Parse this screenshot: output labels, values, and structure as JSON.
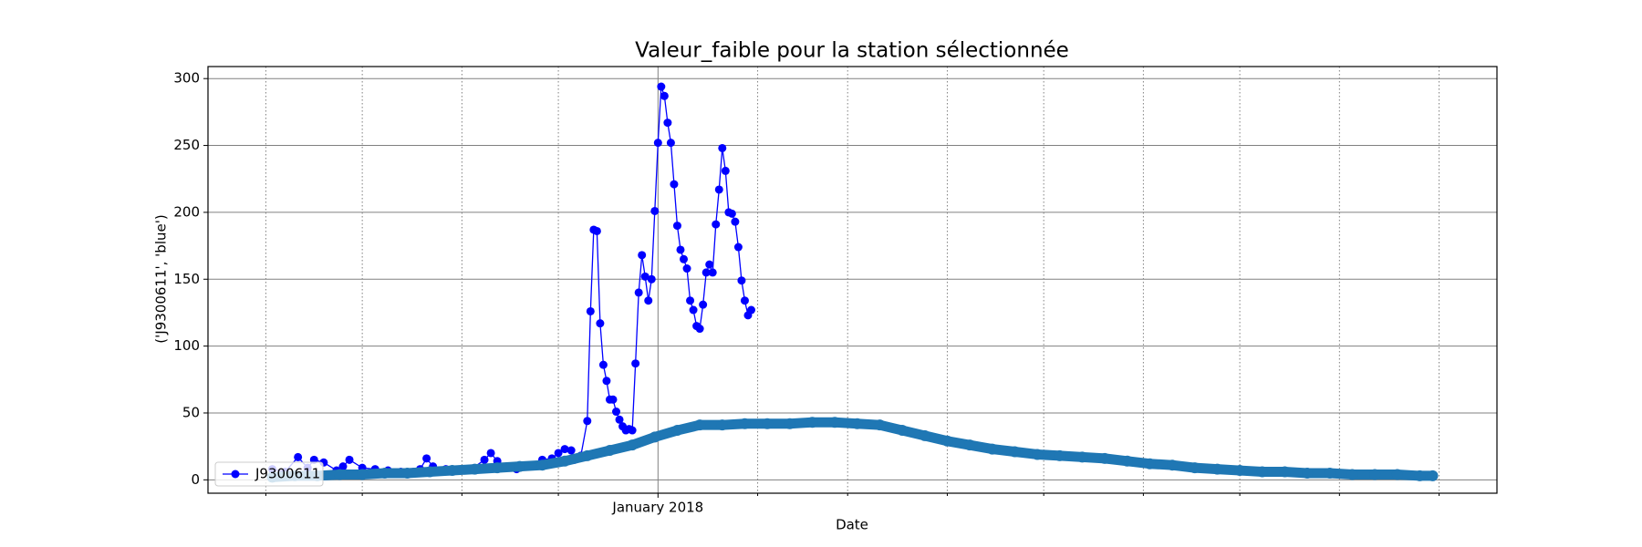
{
  "chart_data": {
    "type": "line",
    "title": "Valeur_faible pour la station sélectionnée",
    "xlabel": "Date",
    "ylabel": "('J9300611', 'blue')",
    "xlim": [
      "2017-08-14",
      "2018-09-19"
    ],
    "xticks": [
      {
        "value": "2018-01-01",
        "label": "January 2018"
      }
    ],
    "xminorticks": [
      "2017-09-01",
      "2017-10-01",
      "2017-11-01",
      "2017-12-01",
      "2018-02-01",
      "2018-03-01",
      "2018-04-01",
      "2018-05-01",
      "2018-06-01",
      "2018-07-01",
      "2018-08-01",
      "2018-09-01"
    ],
    "ylim": [
      -10,
      309
    ],
    "yticks": [
      0,
      50,
      100,
      150,
      200,
      250,
      300
    ],
    "grid": true,
    "legend": "lower left",
    "series": [
      {
        "name": "J9300611",
        "color": "#0000ff",
        "x": [
          "2017-09-03",
          "2017-09-07",
          "2017-09-11",
          "2017-09-14",
          "2017-09-16",
          "2017-09-19",
          "2017-09-23",
          "2017-09-25",
          "2017-09-27",
          "2017-10-01",
          "2017-10-05",
          "2017-10-09",
          "2017-10-13",
          "2017-10-17",
          "2017-10-19",
          "2017-10-21",
          "2017-10-23",
          "2017-10-27",
          "2017-10-31",
          "2017-11-04",
          "2017-11-08",
          "2017-11-10",
          "2017-11-12",
          "2017-11-15",
          "2017-11-18",
          "2017-11-21",
          "2017-11-24",
          "2017-11-26",
          "2017-11-29",
          "2017-12-01",
          "2017-12-03",
          "2017-12-05",
          "2017-12-06",
          "2017-12-08",
          "2017-12-10",
          "2017-12-11",
          "2017-12-12",
          "2017-12-13",
          "2017-12-14",
          "2017-12-15",
          "2017-12-16",
          "2017-12-17",
          "2017-12-18",
          "2017-12-19",
          "2017-12-20",
          "2017-12-21",
          "2017-12-22",
          "2017-12-23",
          "2017-12-24",
          "2017-12-25",
          "2017-12-26",
          "2017-12-27",
          "2017-12-28",
          "2017-12-29",
          "2017-12-30",
          "2017-12-31",
          "2018-01-01",
          "2018-01-02",
          "2018-01-03",
          "2018-01-04",
          "2018-01-05",
          "2018-01-06",
          "2018-01-07",
          "2018-01-08",
          "2018-01-09",
          "2018-01-10",
          "2018-01-11",
          "2018-01-12",
          "2018-01-13",
          "2018-01-14",
          "2018-01-15",
          "2018-01-16",
          "2018-01-17",
          "2018-01-18",
          "2018-01-19",
          "2018-01-20",
          "2018-01-21",
          "2018-01-22",
          "2018-01-23",
          "2018-01-24",
          "2018-01-25",
          "2018-01-26",
          "2018-01-27",
          "2018-01-28",
          "2018-01-29",
          "2018-01-30"
        ],
        "values": [
          8,
          6,
          17,
          9,
          15,
          13,
          7,
          10,
          15,
          9,
          8,
          7,
          6,
          6,
          8,
          16,
          10,
          8,
          7,
          8,
          15,
          20,
          14,
          10,
          8,
          10,
          11,
          15,
          16,
          20,
          23,
          22,
          15,
          18,
          44,
          126,
          187,
          186,
          117,
          86,
          74,
          60,
          60,
          51,
          45,
          40,
          37,
          38,
          37,
          87,
          140,
          168,
          152,
          134,
          150,
          201,
          252,
          294,
          287,
          267,
          252,
          221,
          190,
          172,
          165,
          158,
          134,
          127,
          115,
          113,
          131,
          155,
          161,
          155,
          191,
          217,
          248,
          231,
          200,
          199,
          193,
          174,
          149,
          134,
          123,
          127
        ]
      },
      {
        "color": "#1f77b4",
        "x": [
          "2017-09-03",
          "2017-09-10",
          "2017-09-17",
          "2017-09-24",
          "2017-10-01",
          "2017-10-08",
          "2017-10-15",
          "2017-10-22",
          "2017-10-29",
          "2017-11-05",
          "2017-11-12",
          "2017-11-19",
          "2017-11-26",
          "2017-12-03",
          "2017-12-10",
          "2017-12-17",
          "2017-12-24",
          "2017-12-31",
          "2018-01-07",
          "2018-01-14",
          "2018-01-21",
          "2018-01-28",
          "2018-02-04",
          "2018-02-11",
          "2018-02-18",
          "2018-02-25",
          "2018-03-04",
          "2018-03-11",
          "2018-03-18",
          "2018-03-25",
          "2018-04-01",
          "2018-04-08",
          "2018-04-15",
          "2018-04-22",
          "2018-04-29",
          "2018-05-06",
          "2018-05-13",
          "2018-05-20",
          "2018-05-27",
          "2018-06-03",
          "2018-06-10",
          "2018-06-17",
          "2018-06-24",
          "2018-07-01",
          "2018-07-08",
          "2018-07-15",
          "2018-07-22",
          "2018-07-29",
          "2018-08-05",
          "2018-08-12",
          "2018-08-19",
          "2018-08-26",
          "2018-08-30"
        ],
        "values": [
          2,
          3,
          3,
          4,
          4,
          5,
          5,
          6,
          7,
          8,
          9,
          10,
          11,
          14,
          18,
          22,
          26,
          32,
          37,
          41,
          41,
          42,
          42,
          42,
          43,
          43,
          42,
          41,
          37,
          33,
          29,
          26,
          23,
          21,
          19,
          18,
          17,
          16,
          14,
          12,
          11,
          9,
          8,
          7,
          6,
          6,
          5,
          5,
          4,
          4,
          4,
          3,
          3
        ]
      }
    ]
  }
}
